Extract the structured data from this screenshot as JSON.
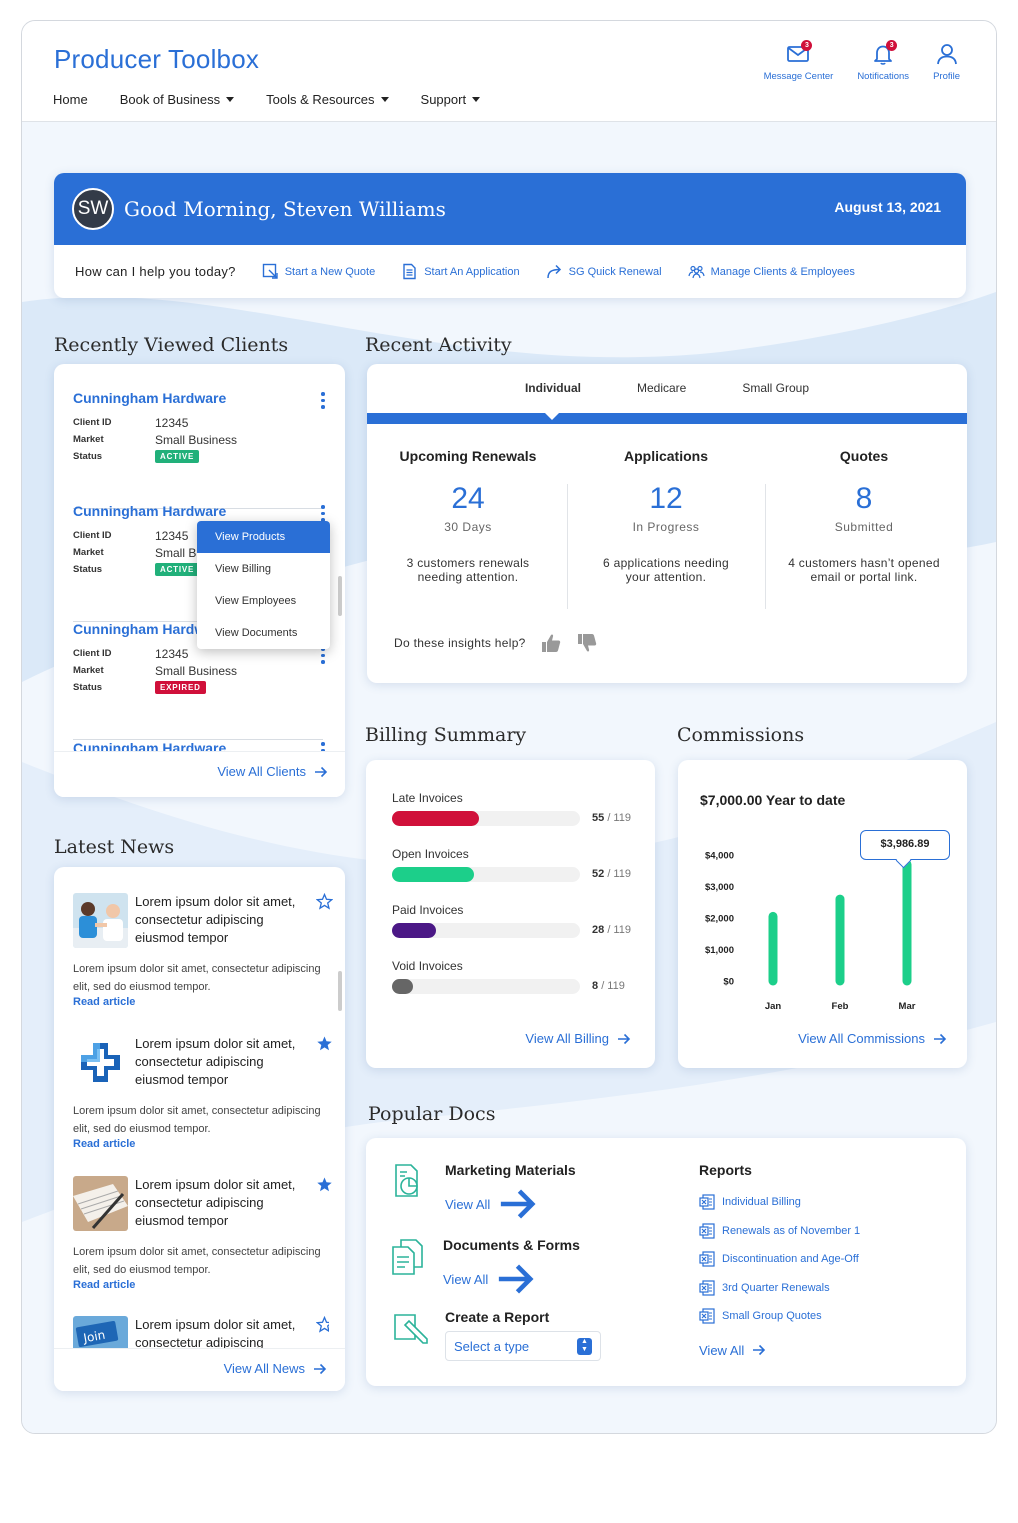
{
  "app": {
    "title": "Producer Toolbox",
    "nav": [
      {
        "label": "Home",
        "has_menu": false
      },
      {
        "label": "Book of Business",
        "has_menu": true
      },
      {
        "label": "Tools & Resources",
        "has_menu": true
      },
      {
        "label": "Support",
        "has_menu": true
      }
    ],
    "top_icons": [
      {
        "label": "Message Center",
        "icon": "mail-icon",
        "badge": "3"
      },
      {
        "label": "Notifications",
        "icon": "bell-icon",
        "badge": "3"
      },
      {
        "label": "Profile",
        "icon": "user-icon",
        "badge": ""
      }
    ],
    "accent": "#2a6fd6"
  },
  "greeting": {
    "initials": "SW",
    "text": "Good Morning, Steven Williams",
    "date": "August 13, 2021",
    "help_prompt": "How can I help you today?",
    "quick_links": [
      {
        "label": "Start a New Quote",
        "icon": "quote-icon"
      },
      {
        "label": "Start An Application",
        "icon": "document-icon"
      },
      {
        "label": "SG Quick Renewal",
        "icon": "forward-arrow-icon"
      },
      {
        "label": "Manage Clients & Employees",
        "icon": "people-icon"
      }
    ]
  },
  "recent_clients": {
    "title": "Recently Viewed Clients",
    "labels": {
      "client_id": "Client ID",
      "market": "Market",
      "status": "Status"
    },
    "clients": [
      {
        "name": "Cunningham Hardware",
        "client_id": "12345",
        "market": "Small Business",
        "status": "ACTIVE"
      },
      {
        "name": "Cunningham Hardware",
        "client_id": "12345",
        "market": "Small Business",
        "status": "ACTIVE"
      },
      {
        "name": "Cunningham Hardware",
        "client_id": "12345",
        "market": "Small Business",
        "status": "EXPIRED"
      },
      {
        "name": "Cunningham Hardware",
        "client_id": "",
        "market": "",
        "status": ""
      }
    ],
    "context_menu": [
      "View Products",
      "View Billing",
      "View Employees",
      "View Documents"
    ],
    "view_all": "View All Clients"
  },
  "recent_activity": {
    "title": "Recent Activity",
    "tabs": [
      "Individual",
      "Medicare",
      "Small Group"
    ],
    "active_tab": "Individual",
    "columns": [
      {
        "heading": "Upcoming Renewals",
        "number": "24",
        "sub": "30 Days",
        "desc_line1": "3 customers renewals",
        "desc_line2": "needing attention."
      },
      {
        "heading": "Applications",
        "number": "12",
        "sub": "In Progress",
        "desc_line1": "6 applications needing",
        "desc_line2": "your attention."
      },
      {
        "heading": "Quotes",
        "number": "8",
        "sub": "Submitted",
        "desc_line1": "4 customers hasn’t opened",
        "desc_line2": "email or portal link."
      }
    ],
    "insight_question": "Do these insights help?"
  },
  "billing": {
    "title": "Billing Summary",
    "rows": [
      {
        "label": "Late Invoices",
        "count": "55",
        "total": "/ 119",
        "value": 55,
        "color": "#d0103a"
      },
      {
        "label": "Open Invoices",
        "count": "52",
        "total": "/ 119",
        "value": 52,
        "color": "#1ccf8a"
      },
      {
        "label": "Paid Invoices",
        "count": "28",
        "total": "/ 119",
        "value": 28,
        "color": "#4b1886"
      },
      {
        "label": "Void Invoices",
        "count": "8",
        "total": "/ 119",
        "value": 8,
        "color": "#666666"
      }
    ],
    "max": 119,
    "view_all": "View All Billing"
  },
  "commissions": {
    "title": "Commissions",
    "ytd": "$7,000.00 Year to date",
    "tooltip": "$3,986.89",
    "view_all": "View All Commissions"
  },
  "chart_data": {
    "type": "bar",
    "categories": [
      "Jan",
      "Feb",
      "Mar"
    ],
    "values": [
      2050,
      2600,
      3700
    ],
    "ylim": [
      0,
      4000
    ],
    "yticks": [
      "$0",
      "$1,000",
      "$2,000",
      "$3,000",
      "$4,000"
    ],
    "ytick_values": [
      0,
      1000,
      2000,
      3000,
      4000
    ],
    "color": "#1ccf8a",
    "grid": false
  },
  "news": {
    "title": "Latest News",
    "items": [
      {
        "title": "Lorem ipsum dolor sit amet, consectetur adipiscing eiusmod tempor",
        "body": "Lorem ipsum dolor sit amet, consectetur adipiscing elit, sed do eiusmod tempor.",
        "link": "Read article",
        "starred": false,
        "image": "doctor-photo"
      },
      {
        "title": "Lorem ipsum dolor sit amet, consectetur adipiscing eiusmod tempor",
        "body": "Lorem ipsum dolor sit amet, consectetur adipiscing elit, sed do eiusmod tempor.",
        "link": "Read article",
        "starred": true,
        "image": "health-cross-logo"
      },
      {
        "title": "Lorem ipsum dolor sit amet, consectetur adipiscing eiusmod tempor",
        "body": "Lorem ipsum dolor sit amet, consectetur adipiscing elit, sed do eiusmod tempor.",
        "link": "Read article",
        "starred": true,
        "image": "paperwork-photo"
      },
      {
        "title": "Lorem ipsum dolor sit amet, consectetur adipiscing",
        "body": "",
        "link": "",
        "starred": false,
        "image": "join-sign-photo"
      }
    ],
    "view_all": "View All News"
  },
  "popular_docs": {
    "title": "Popular Docs",
    "items": [
      {
        "title": "Marketing Materials",
        "link": "View All",
        "icon": "marketing-doc-icon"
      },
      {
        "title": "Documents & Forms",
        "link": "View All",
        "icon": "forms-doc-icon"
      },
      {
        "title": "Create a Report",
        "select_placeholder": "Select a type",
        "icon": "report-pencil-icon"
      }
    ],
    "reports": {
      "title": "Reports",
      "items": [
        "Individual Billing",
        "Renewals as of November 1",
        "Discontinuation and Age-Off",
        "3rd Quarter Renewals",
        "Small Group Quotes"
      ],
      "view_all": "View All"
    }
  }
}
